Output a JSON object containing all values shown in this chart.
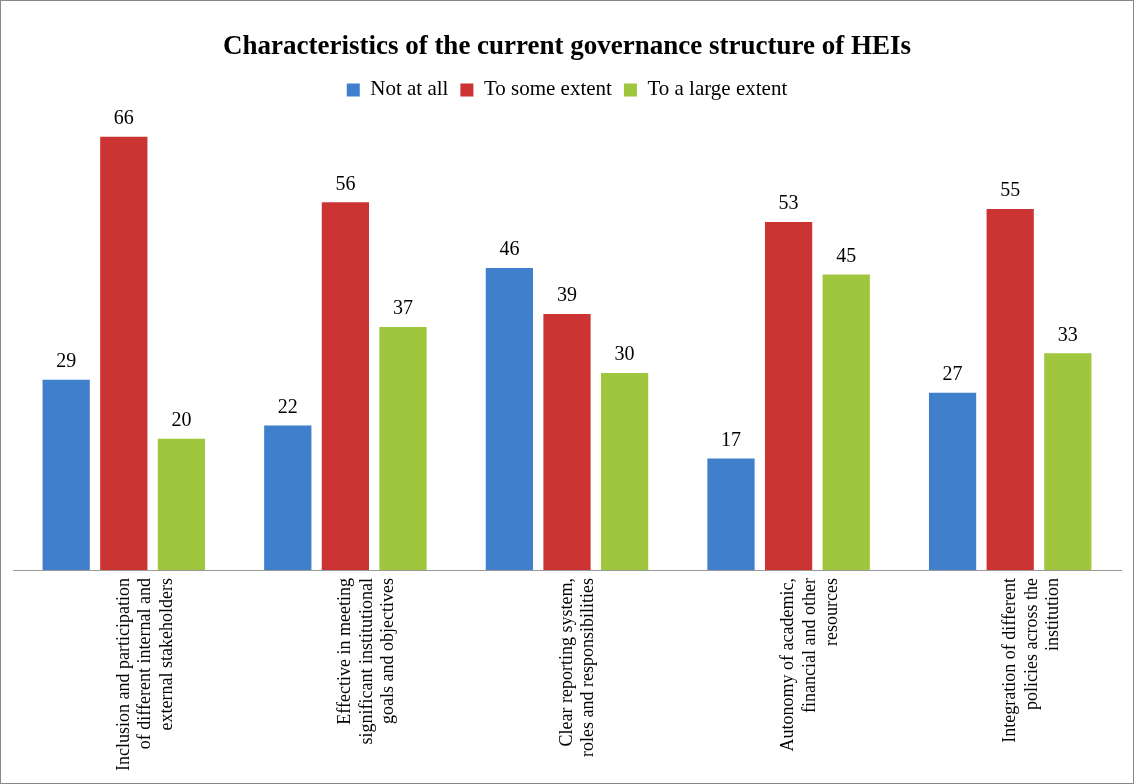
{
  "chart_data": {
    "type": "bar",
    "title": "Characteristics of the current governance structure of HEIs",
    "categories": [
      "Inclusion and participation of different internal and external stakeholders",
      "Effective in meeting significant institutional goals and objectives",
      "Clear reporting system, roles and responsibilities",
      "Autonomy of academic, financial and other resources",
      "Integration of different policies across the institution"
    ],
    "series": [
      {
        "name": "Not at all",
        "color": "#3f7fcc",
        "values": [
          29,
          22,
          46,
          17,
          27
        ]
      },
      {
        "name": "To some extent",
        "color": "#cc3333",
        "values": [
          66,
          56,
          39,
          53,
          55
        ]
      },
      {
        "name": "To a large extent",
        "color": "#9fc63c",
        "values": [
          20,
          37,
          30,
          45,
          33
        ]
      }
    ],
    "data_labels": true,
    "legend": "top",
    "grid": false,
    "tick_labels": "x"
  }
}
